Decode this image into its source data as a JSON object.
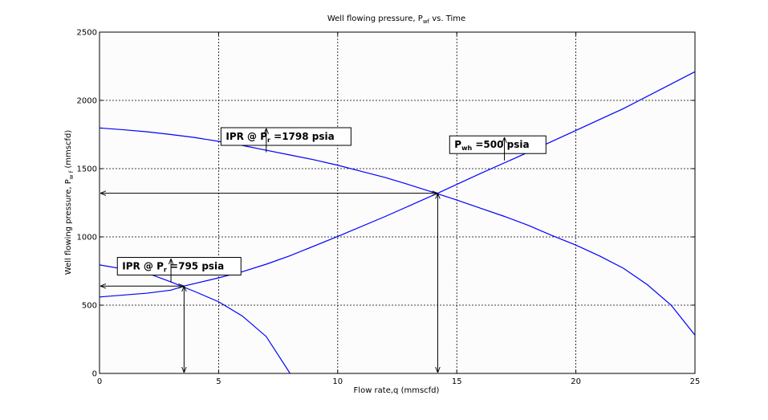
{
  "chart_data": {
    "type": "line",
    "title": "Well flowing pressure, P",
    "title_sub": "wf",
    "title_suffix": " vs. Time",
    "xlabel": "Flow rate,q (mmscfd)",
    "ylabel": "Well flowing pressure, P",
    "ylabel_sub": "w f",
    "ylabel_suffix": " (mmscfd)",
    "xlim": [
      0,
      25
    ],
    "ylim": [
      0,
      2500
    ],
    "xticks": [
      0,
      5,
      10,
      15,
      20,
      25
    ],
    "yticks": [
      0,
      500,
      1000,
      1500,
      2000,
      2500
    ],
    "grid": true,
    "line_color": "#0000ff",
    "series": [
      {
        "x": [
          0,
          2,
          3,
          4,
          5,
          6,
          7,
          8
        ],
        "y": [
          795,
          735,
          670,
          600,
          525,
          420,
          270,
          0
        ]
      },
      {
        "x": [
          0,
          1,
          2,
          3,
          4,
          5,
          6,
          7,
          8,
          9,
          10,
          11,
          12,
          13,
          14,
          15,
          16,
          17,
          18,
          19,
          20,
          21,
          22,
          23,
          24,
          25
        ],
        "y": [
          1798,
          1785,
          1770,
          1750,
          1728,
          1700,
          1670,
          1635,
          1600,
          1565,
          1525,
          1480,
          1435,
          1382,
          1327,
          1270,
          1210,
          1150,
          1085,
          1010,
          940,
          860,
          770,
          650,
          500,
          280
        ]
      },
      {
        "x": [
          0,
          2,
          3,
          3.55,
          5,
          6,
          7,
          8,
          10,
          12,
          14.2,
          16,
          18,
          20,
          22,
          25
        ],
        "y": [
          560,
          588,
          610,
          640,
          700,
          745,
          800,
          862,
          1003,
          1150,
          1320,
          1465,
          1620,
          1780,
          1940,
          2210
        ]
      }
    ],
    "annotations": [
      {
        "text": "IPR @ P",
        "sub": "r",
        "suffix": " =1798 psia",
        "box_x": 5.1,
        "box_y": 1800,
        "arrow_from": [
          7,
          1620
        ],
        "arrow_to": [
          7,
          1795
        ]
      },
      {
        "text": "P",
        "sub": "wh",
        "suffix": " =500 psia",
        "box_x": 14.7,
        "box_y": 1740,
        "arrow_from": [
          17,
          1560
        ],
        "arrow_to": [
          17,
          1730
        ]
      },
      {
        "text": "IPR @ P",
        "sub": "r",
        "suffix": " =795 psia",
        "box_x": 0.75,
        "box_y": 850,
        "arrow_from": [
          3.0,
          670
        ],
        "arrow_to": [
          3.0,
          840
        ]
      }
    ],
    "intersections": [
      {
        "x": 3.55,
        "y": 640
      },
      {
        "x": 14.2,
        "y": 1320
      }
    ]
  }
}
